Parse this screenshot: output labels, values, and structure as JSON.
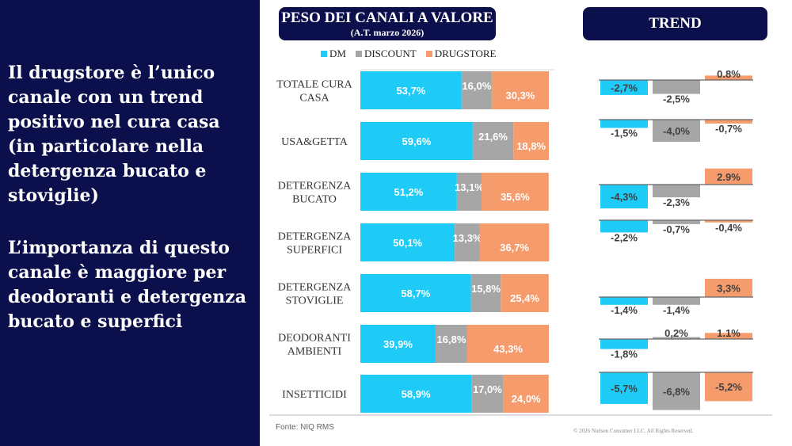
{
  "left_panel": {
    "paragraph1": "Il drugstore è l’unico canale con un trend positivo nel cura casa (in particolare nella detergenza bucato e stoviglie)",
    "paragraph2": "L’importanza di questo canale è maggiore per deodoranti e detergenza bucato e superfici"
  },
  "header_weight": {
    "title": "PESO DEI CANALI A VALORE",
    "subtitle": "(A.T. marzo 2026)"
  },
  "header_trend": {
    "title": "TREND"
  },
  "colors": {
    "DM": "#1ecbf7",
    "DISCOUNT": "#a6a6a6",
    "DRUGSTORE": "#f59b6c",
    "navy": "#0b0f4b"
  },
  "chart_data": [
    {
      "type": "bar",
      "orientation": "horizontal-stacked-100",
      "title": "PESO DEI CANALI A VALORE",
      "subtitle": "(A.T. marzo 2026)",
      "legend": "top",
      "categories": [
        [
          "TOTALE CURA",
          "CASA"
        ],
        [
          "USA&GETTA"
        ],
        [
          "DETERGENZA",
          "BUCATO"
        ],
        [
          "DETERGENZA",
          "SUPERFICI"
        ],
        [
          "DETERGENZA",
          "STOVIGLIE"
        ],
        [
          "DEODORANTI",
          "AMBIENTI"
        ],
        [
          "INSETTICIDI"
        ]
      ],
      "series": [
        {
          "name": "DM",
          "values": [
            53.7,
            59.6,
            51.2,
            50.1,
            58.7,
            39.9,
            58.9
          ],
          "labels": [
            "53,7%",
            "59,6%",
            "51,2%",
            "50,1%",
            "58,7%",
            "39,9%",
            "58,9%"
          ]
        },
        {
          "name": "DISCOUNT",
          "values": [
            16.0,
            21.6,
            13.1,
            13.3,
            15.8,
            16.8,
            17.0
          ],
          "labels": [
            "16,0%",
            "21,6%",
            "13,1%",
            "13,3%",
            "15,8%",
            "16,8%",
            "17,0%"
          ]
        },
        {
          "name": "DRUGSTORE",
          "values": [
            30.3,
            18.8,
            35.6,
            36.7,
            25.4,
            43.3,
            24.0
          ],
          "labels": [
            "30,3%",
            "18,8%",
            "35,6%",
            "36,7%",
            "25,4%",
            "43,3%",
            "24,0%"
          ]
        }
      ]
    },
    {
      "type": "bar",
      "title": "TREND",
      "series": [
        {
          "name": "DM",
          "values": [
            -2.7,
            -1.5,
            -4.3,
            -2.2,
            -1.4,
            -1.8,
            -5.7
          ],
          "labels": [
            "-2,7%",
            "-1,5%",
            "-4,3%",
            "-2,2%",
            "-1,4%",
            "-1,8%",
            "-5,7%"
          ]
        },
        {
          "name": "DISCOUNT",
          "values": [
            -2.5,
            -4.0,
            -2.3,
            -0.7,
            -1.4,
            0.2,
            -6.8
          ],
          "labels": [
            "-2,5%",
            "-4,0%",
            "-2,3%",
            "-0,7%",
            "-1,4%",
            "0,2%",
            "-6,8%"
          ]
        },
        {
          "name": "DRUGSTORE",
          "values": [
            0.8,
            -0.7,
            2.9,
            -0.4,
            3.3,
            1.1,
            -5.2
          ],
          "labels": [
            "0.8%",
            "-0,7%",
            "2.9%",
            "-0,4%",
            "3,3%",
            "1.1%",
            "-5,2%"
          ]
        }
      ]
    }
  ],
  "footer": {
    "source": "Fonte: NIQ RMS",
    "copyright": "© 2026 Nielsen Consumer LLC. All Rights Reserved."
  }
}
